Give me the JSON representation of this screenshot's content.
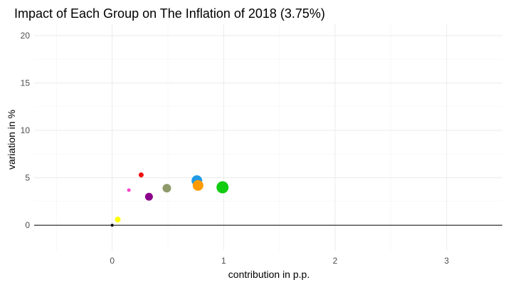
{
  "chart_data": {
    "type": "scatter",
    "title": "Impact of Each Group on The Inflation of 2018 (3.75%)",
    "xlabel": "contribution in p.p.",
    "ylabel": "variation in %",
    "xlim": [
      -0.7,
      3.5
    ],
    "ylim": [
      -2.7,
      21.2
    ],
    "x_ticks": [
      0,
      1,
      2,
      3
    ],
    "y_ticks": [
      0,
      5,
      10,
      15,
      20
    ],
    "x_minor": [
      -0.5,
      0.5,
      1.5,
      2.5
    ],
    "y_minor": [
      2.5,
      7.5,
      12.5,
      17.5
    ],
    "hline": 0,
    "grid": true,
    "points": [
      {
        "x": 0.0,
        "y": 0.0,
        "size": 2,
        "color": "#000000"
      },
      {
        "x": 0.05,
        "y": 0.6,
        "size": 4,
        "color": "#ffff00"
      },
      {
        "x": 0.15,
        "y": 3.7,
        "size": 2.5,
        "color": "#ff44cc"
      },
      {
        "x": 0.26,
        "y": 5.3,
        "size": 3.5,
        "color": "#ee1111"
      },
      {
        "x": 0.33,
        "y": 3.0,
        "size": 5.5,
        "color": "#8b008b"
      },
      {
        "x": 0.49,
        "y": 3.9,
        "size": 6,
        "color": "#8f9a6a"
      },
      {
        "x": 0.76,
        "y": 4.7,
        "size": 7.5,
        "color": "#1e9ae6"
      },
      {
        "x": 0.77,
        "y": 4.2,
        "size": 7.5,
        "color": "#ff9a00"
      },
      {
        "x": 0.99,
        "y": 4.0,
        "size": 8.5,
        "color": "#11cc11"
      }
    ]
  }
}
